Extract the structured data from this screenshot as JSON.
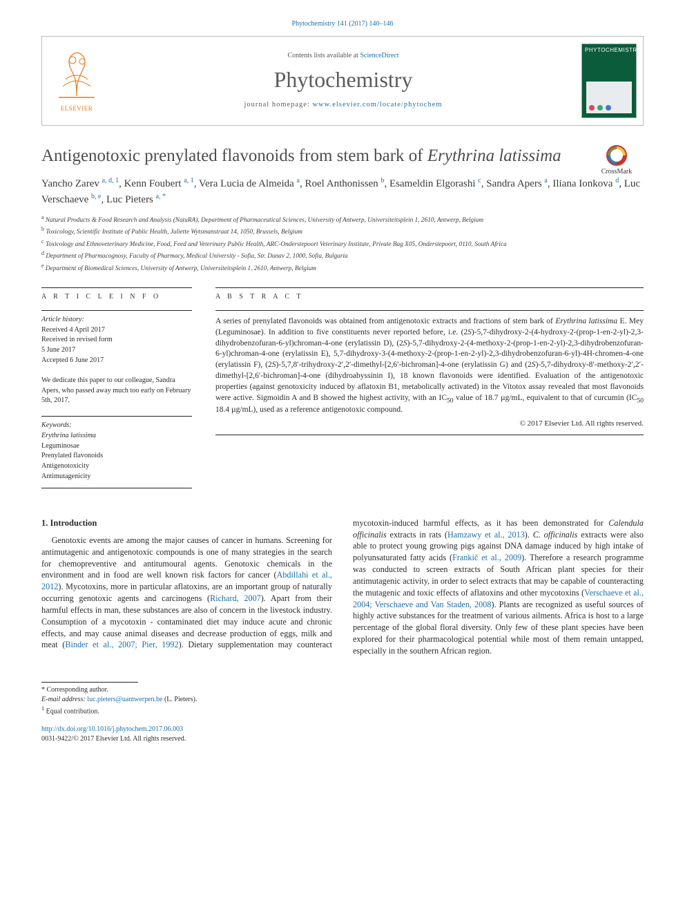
{
  "citation": {
    "text": "Phytochemistry 141 (2017) 140–146",
    "link_color": "#1b6ea8"
  },
  "masthead": {
    "contents_prefix": "Contents lists available at ",
    "contents_link": "ScienceDirect",
    "journal": "Phytochemistry",
    "homepage_prefix": "journal homepage: ",
    "homepage_url": "www.elsevier.com/locate/phytochem",
    "publisher_logo_label": "ELSEVIER",
    "publisher_logo_color": "#e67817",
    "cover": {
      "bg": "#0a5c3a",
      "title": "PHYTOCHEMISTRY"
    }
  },
  "crossmark_label": "CrossMark",
  "title_html": "Antigenotoxic prenylated flavonoids from stem bark of <em>Erythrina latissima</em>",
  "authors_html": "Yancho Zarev <sup>a, d, 1</sup>, Kenn Foubert <sup>a, 1</sup>, Vera Lucia de Almeida <sup>a</sup>, Roel Anthonissen <sup>b</sup>, Esameldin Elgorashi <sup>c</sup>, Sandra Apers <sup>a</sup>, Iliana Ionkova <sup>d</sup>, Luc Verschaeve <sup>b, e</sup>, Luc Pieters <sup>a, <span class='ast'>*</span></sup>",
  "affiliations": [
    {
      "sup": "a",
      "text": "Natural Products & Food Research and Analysis (NatuRA), Department of Pharmaceutical Sciences, University of Antwerp, Universiteitsplein 1, 2610, Antwerp, Belgium"
    },
    {
      "sup": "b",
      "text": "Toxicology, Scientific Institute of Public Health, Juliette Wytsmanstraat 14, 1050, Brussels, Belgium"
    },
    {
      "sup": "c",
      "text": "Toxicology and Ethnoveterinary Medicine, Food, Feed and Veterinary Public Health, ARC-Onderstepoort Veterinary Institute, Private Bag X05, Onderstepoort, 0110, South Africa"
    },
    {
      "sup": "d",
      "text": "Department of Pharmacognosy, Faculty of Pharmacy, Medical University - Sofia, Str. Dunav 2, 1000, Sofia, Bulgaria"
    },
    {
      "sup": "e",
      "text": "Department of Biomedical Sciences, University of Antwerp, Universiteitsplein 1, 2610, Antwerp, Belgium"
    }
  ],
  "article_info": {
    "head": "A R T I C L E  I N F O",
    "history_label": "Article history:",
    "history": [
      "Received 4 April 2017",
      "Received in revised form",
      "5 June 2017",
      "Accepted 6 June 2017"
    ],
    "dedication": "We dedicate this paper to our colleague, Sandra Apers, who passed away much too early on February 5th, 2017.",
    "keywords_label": "Keywords:",
    "keywords": [
      "Erythrina latissima",
      "Leguminosae",
      "Prenylated flavonoids",
      "Antigenotoxicity",
      "Antimutagenicity"
    ]
  },
  "abstract": {
    "head": "A B S T R A C T",
    "text_html": "A series of prenylated flavonoids was obtained from antigenotoxic extracts and fractions of stem bark of <em>Erythrina latissima</em> E. Mey (Leguminosae). In addition to five constituents never reported before, i.e. (2<em>S</em>)-5,7-dihydroxy-2-(4-hydroxy-2-(prop-1-en-2-yl)-2,3-dihydrobenzofuran-6-yl)chroman-4-one (erylatissin D), (2<em>S</em>)-5,7-dihydroxy-2-(4-methoxy-2-(prop-1-en-2-yl)-2,3-dihydrobenzofuran-6-yl)chroman-4-one (erylatissin E), 5,7-dihydroxy-3-(4-methoxy-2-(prop-1-en-2-yl)-2,3-dihydrobenzofuran-6-yl)-4H-chromen-4-one (erylatissin F), (2<em>S</em>)-5,7,8′-trihydroxy-2′,2′-dimethyl-[2,6′-bichroman]-4-one (erylatissin G) and (2<em>S</em>)-5,7-dihydroxy-8′-methoxy-2′,2′-dimethyl-[2,6′-bichroman]-4-one (dihydroabyssinin I), 18 known flavonoids were identified. Evaluation of the antigenotoxic properties (against genotoxicity induced by aflatoxin B1, metabolically activated) in the Vitotox assay revealed that most flavonoids were active. Sigmoidin A and B showed the highest activity, with an IC<sub>50</sub> value of 18.7 µg/mL, equivalent to that of curcumin (IC<sub>50</sub> 18.4 µg/mL), used as a reference antigenotoxic compound.",
    "copyright": "© 2017 Elsevier Ltd. All rights reserved."
  },
  "section1": {
    "head": "1. Introduction",
    "para_html": "Genotoxic events are among the major causes of cancer in humans. Screening for antimutagenic and antigenotoxic compounds is one of many strategies in the search for chemopreventive and antitumoural agents. Genotoxic chemicals in the environment and in food are well known risk factors for cancer (<a href='#'>Abdillahi et al., 2012</a>). Mycotoxins, more in particular aflatoxins, are an important group of naturally occurring genotoxic agents and carcinogens (<a href='#'>Richard, 2007</a>). Apart from their harmful effects in man, these substances are also of concern in the livestock industry. Consumption of a mycotoxin - contaminated diet may induce acute and chronic effects, and may cause animal diseases and decrease production of eggs, milk and meat (<a href='#'>Binder et al., 2007; Pier, 1992</a>). Dietary supplementation may counteract mycotoxin-induced harmful effects, as it has been demonstrated for <em>Calendula officinalis</em> extracts in rats (<a href='#'>Hamzawy et al., 2013</a>). <em>C. officinalis</em> extracts were also able to protect young growing pigs against DNA damage induced by high intake of polyunsaturated fatty acids (<a href='#'>Frankič et al., 2009</a>). Therefore a research programme was conducted to screen extracts of South African plant species for their antimutagenic activity, in order to select extracts that may be capable of counteracting the mutagenic and toxic effects of aflatoxins and other mycotoxins (<a href='#'>Verschaeve et al., 2004; Verschaeve and Van Staden, 2008</a>). Plants are recognized as useful sources of highly active substances for the treatment of various ailments. Africa is host to a large percentage of the global floral diversity. Only few of these plant species have been explored for their pharmacological potential while most of them remain untapped, especially in the southern African region."
  },
  "footnotes": {
    "corresponding": "* Corresponding author.",
    "email_label": "E-mail address:",
    "email": "luc.pieters@uantwerpen.be",
    "email_who": "(L. Pieters).",
    "equal": "Equal contribution.",
    "equal_sup": "1"
  },
  "doi": {
    "url": "http://dx.doi.org/10.1016/j.phytochem.2017.06.003",
    "issn_line": "0031-9422/© 2017 Elsevier Ltd. All rights reserved."
  },
  "colors": {
    "link": "#1b6ea8",
    "text": "#2a2a2a",
    "heading_gray": "#4d4d4d",
    "elsevier_orange": "#e67817"
  }
}
